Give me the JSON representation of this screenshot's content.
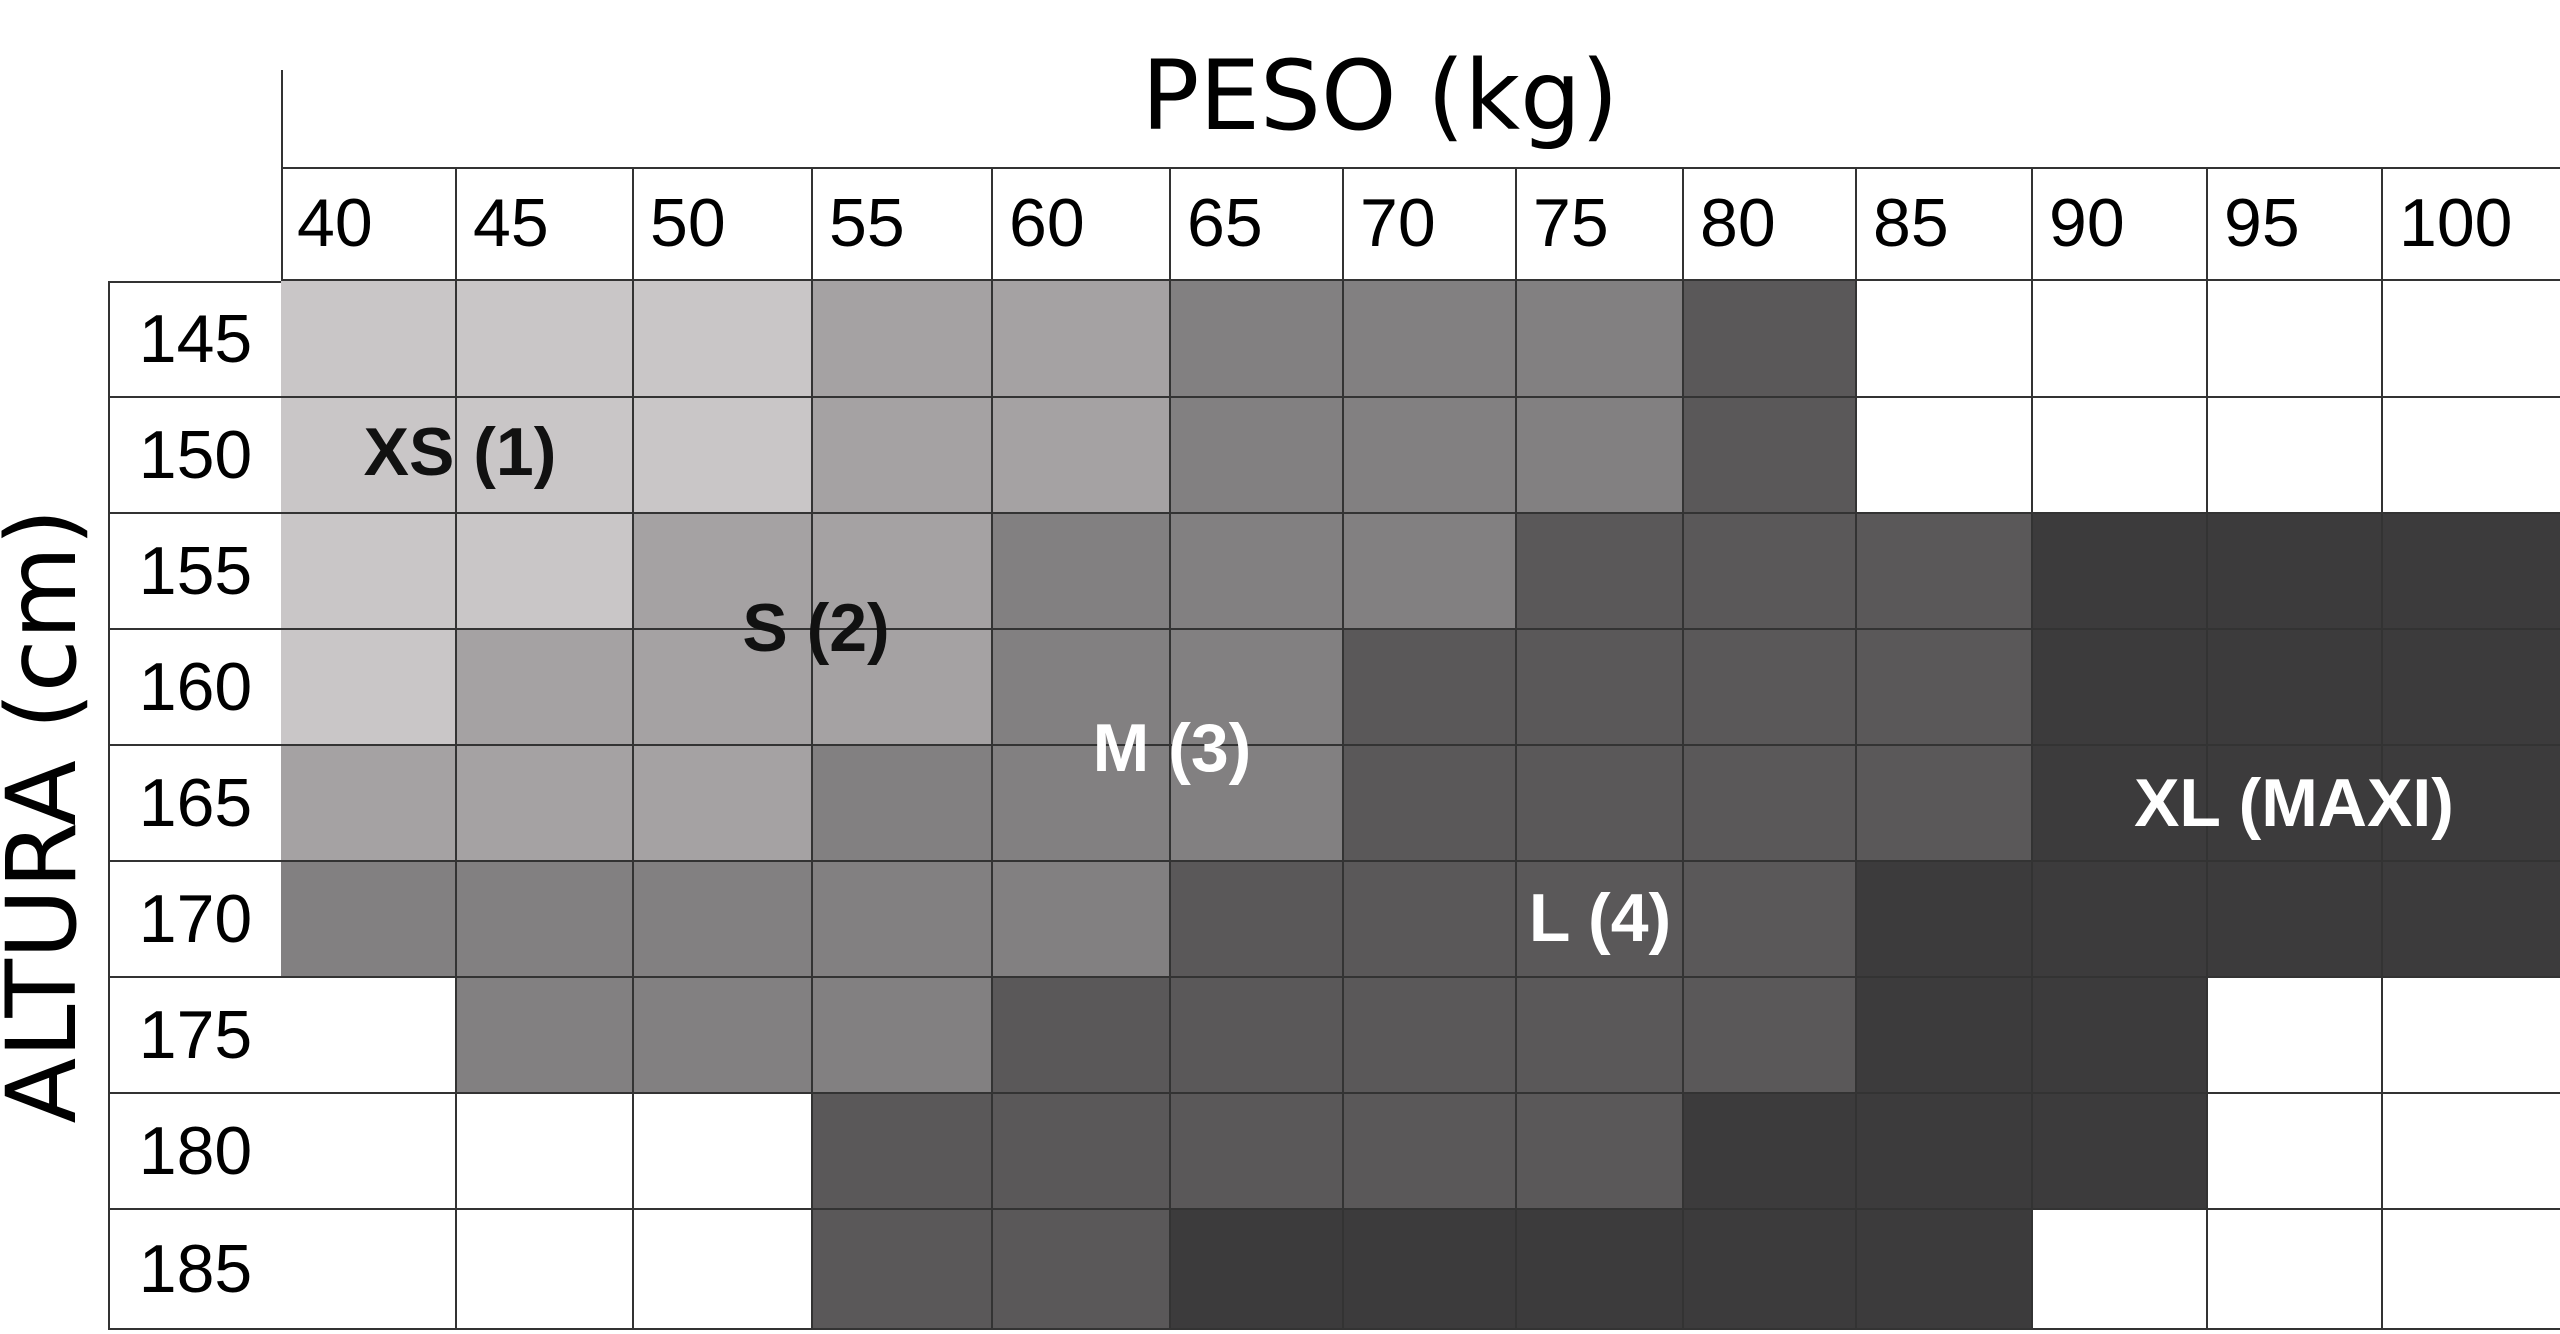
{
  "chart_data": {
    "type": "heatmap",
    "title": "PESO (kg)",
    "xlabel": "PESO (kg)",
    "ylabel": "ALTURA (cm)",
    "x": [
      "40",
      "45",
      "50",
      "55",
      "60",
      "65",
      "70",
      "75",
      "80",
      "85",
      "90",
      "95",
      "100"
    ],
    "y": [
      "145",
      "150",
      "155",
      "160",
      "165",
      "170",
      "175",
      "180",
      "185"
    ],
    "size_levels": {
      "0": "none",
      "1": "XS (1)",
      "2": "S (2)",
      "3": "M (3)",
      "4": "L (4)",
      "5": "XL (MAXI)"
    },
    "colors": {
      "0": "#ffffff",
      "1": "#c9c6c7",
      "2": "#a5a2a3",
      "3": "#828081",
      "4": "#5a5859",
      "5": "#3c3b3c"
    },
    "grid": [
      [
        1,
        1,
        1,
        2,
        2,
        3,
        3,
        3,
        4,
        0,
        0,
        0,
        0
      ],
      [
        1,
        1,
        1,
        2,
        2,
        3,
        3,
        3,
        4,
        0,
        0,
        0,
        0
      ],
      [
        1,
        1,
        2,
        2,
        3,
        3,
        3,
        4,
        4,
        4,
        5,
        5,
        5
      ],
      [
        1,
        2,
        2,
        2,
        3,
        3,
        4,
        4,
        4,
        4,
        5,
        5,
        5
      ],
      [
        2,
        2,
        2,
        3,
        3,
        3,
        4,
        4,
        4,
        4,
        5,
        5,
        5
      ],
      [
        3,
        3,
        3,
        3,
        3,
        4,
        4,
        4,
        4,
        5,
        5,
        5,
        5
      ],
      [
        0,
        3,
        3,
        3,
        4,
        4,
        4,
        4,
        4,
        5,
        5,
        0,
        0
      ],
      [
        0,
        0,
        0,
        4,
        4,
        4,
        4,
        4,
        5,
        5,
        5,
        0,
        0
      ],
      [
        0,
        0,
        0,
        4,
        4,
        5,
        5,
        5,
        5,
        5,
        0,
        0,
        0
      ]
    ],
    "annotations": [
      {
        "text": "XS (1)",
        "color": "#111111"
      },
      {
        "text": "S (2)",
        "color": "#111111"
      },
      {
        "text": "M (3)",
        "color": "#ffffff"
      },
      {
        "text": "L (4)",
        "color": "#ffffff"
      },
      {
        "text": "XL (MAXI)",
        "color": "#ffffff"
      }
    ]
  }
}
